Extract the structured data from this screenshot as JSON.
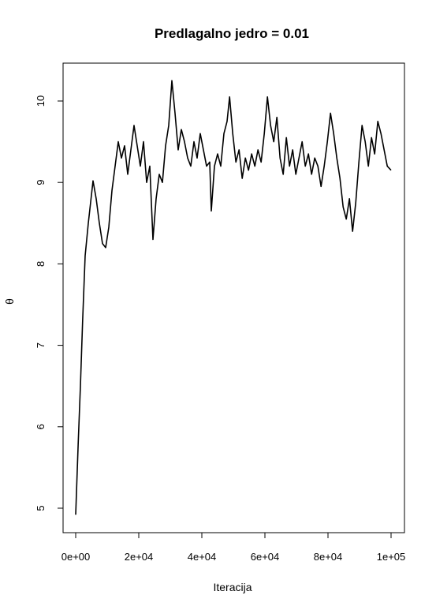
{
  "chart_data": {
    "type": "line",
    "title": "Predlagalno jedro = 0.01",
    "xlabel": "Iteracija",
    "ylabel": "θ",
    "xlim": [
      0,
      100000
    ],
    "ylim": [
      4.9,
      10.3
    ],
    "x_ticks": [
      {
        "value": 0,
        "label": "0e+00"
      },
      {
        "value": 20000,
        "label": "2e+04"
      },
      {
        "value": 40000,
        "label": "4e+04"
      },
      {
        "value": 60000,
        "label": "6e+04"
      },
      {
        "value": 80000,
        "label": "8e+04"
      },
      {
        "value": 100000,
        "label": "1e+05"
      }
    ],
    "y_ticks": [
      {
        "value": 5,
        "label": "5"
      },
      {
        "value": 6,
        "label": "6"
      },
      {
        "value": 7,
        "label": "7"
      },
      {
        "value": 8,
        "label": "8"
      },
      {
        "value": 9,
        "label": "9"
      },
      {
        "value": 10,
        "label": "10"
      }
    ],
    "series": [
      {
        "color": "#000000",
        "points": [
          [
            0,
            4.92
          ],
          [
            800,
            5.8
          ],
          [
            1500,
            6.5
          ],
          [
            2200,
            7.3
          ],
          [
            3000,
            8.1
          ],
          [
            4000,
            8.5
          ],
          [
            5500,
            9.02
          ],
          [
            6500,
            8.8
          ],
          [
            7500,
            8.5
          ],
          [
            8500,
            8.25
          ],
          [
            9500,
            8.2
          ],
          [
            10500,
            8.45
          ],
          [
            11500,
            8.9
          ],
          [
            12500,
            9.2
          ],
          [
            13500,
            9.5
          ],
          [
            14500,
            9.3
          ],
          [
            15500,
            9.45
          ],
          [
            16500,
            9.1
          ],
          [
            17500,
            9.4
          ],
          [
            18500,
            9.7
          ],
          [
            19500,
            9.45
          ],
          [
            20500,
            9.2
          ],
          [
            21500,
            9.5
          ],
          [
            22500,
            9.0
          ],
          [
            23500,
            9.2
          ],
          [
            24500,
            8.3
          ],
          [
            25500,
            8.8
          ],
          [
            26500,
            9.1
          ],
          [
            27500,
            9.0
          ],
          [
            28500,
            9.45
          ],
          [
            29500,
            9.7
          ],
          [
            30500,
            10.25
          ],
          [
            31500,
            9.85
          ],
          [
            32500,
            9.4
          ],
          [
            33500,
            9.65
          ],
          [
            34500,
            9.5
          ],
          [
            35500,
            9.3
          ],
          [
            36500,
            9.2
          ],
          [
            37500,
            9.5
          ],
          [
            38500,
            9.3
          ],
          [
            39500,
            9.6
          ],
          [
            40500,
            9.4
          ],
          [
            41500,
            9.2
          ],
          [
            42500,
            9.25
          ],
          [
            43000,
            8.65
          ],
          [
            44000,
            9.2
          ],
          [
            45000,
            9.35
          ],
          [
            46000,
            9.2
          ],
          [
            47000,
            9.6
          ],
          [
            48000,
            9.75
          ],
          [
            48800,
            10.05
          ],
          [
            49800,
            9.6
          ],
          [
            50800,
            9.25
          ],
          [
            51800,
            9.4
          ],
          [
            52800,
            9.05
          ],
          [
            53800,
            9.3
          ],
          [
            54800,
            9.15
          ],
          [
            55800,
            9.35
          ],
          [
            56800,
            9.2
          ],
          [
            57800,
            9.4
          ],
          [
            58800,
            9.25
          ],
          [
            59800,
            9.6
          ],
          [
            60800,
            10.05
          ],
          [
            61800,
            9.7
          ],
          [
            62800,
            9.5
          ],
          [
            63800,
            9.8
          ],
          [
            64800,
            9.3
          ],
          [
            65800,
            9.1
          ],
          [
            66800,
            9.55
          ],
          [
            67800,
            9.2
          ],
          [
            68800,
            9.4
          ],
          [
            69800,
            9.1
          ],
          [
            70800,
            9.3
          ],
          [
            71800,
            9.5
          ],
          [
            72800,
            9.2
          ],
          [
            73800,
            9.35
          ],
          [
            74800,
            9.1
          ],
          [
            75800,
            9.3
          ],
          [
            76800,
            9.2
          ],
          [
            77800,
            8.95
          ],
          [
            78800,
            9.2
          ],
          [
            79800,
            9.5
          ],
          [
            80800,
            9.85
          ],
          [
            81800,
            9.6
          ],
          [
            82800,
            9.3
          ],
          [
            83800,
            9.05
          ],
          [
            84800,
            8.7
          ],
          [
            85800,
            8.55
          ],
          [
            86800,
            8.8
          ],
          [
            87800,
            8.4
          ],
          [
            88800,
            8.75
          ],
          [
            89800,
            9.25
          ],
          [
            90800,
            9.7
          ],
          [
            91800,
            9.5
          ],
          [
            92800,
            9.2
          ],
          [
            93800,
            9.55
          ],
          [
            94800,
            9.35
          ],
          [
            95800,
            9.75
          ],
          [
            96800,
            9.6
          ],
          [
            97800,
            9.4
          ],
          [
            98800,
            9.2
          ],
          [
            100000,
            9.15
          ]
        ]
      }
    ],
    "grid": false,
    "legend": "none"
  }
}
